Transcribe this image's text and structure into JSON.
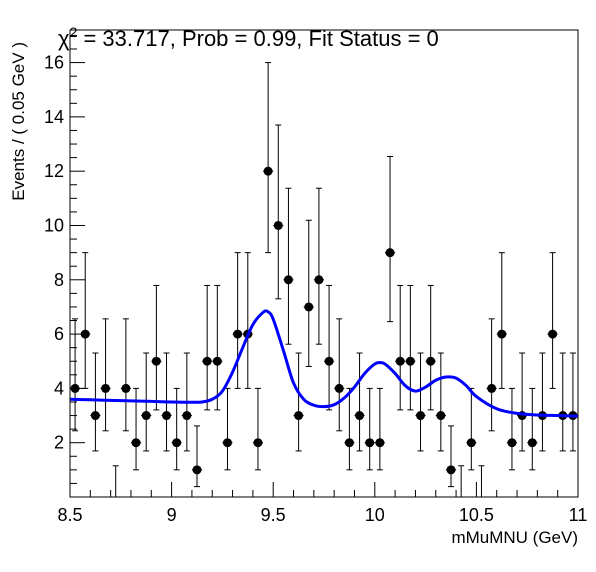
{
  "chart_data": {
    "type": "scatter",
    "title": "χ² = 33.717, Prob = 0.99, Fit Status = 0",
    "title_parts": {
      "chi": "χ",
      "sup": "2",
      "rest": " = 33.717, Prob = 0.99, Fit Status = 0"
    },
    "xlabel": "mMuMNU (GeV)",
    "ylabel": "Events / ( 0.05 GeV )",
    "xlim": [
      8.5,
      11.0
    ],
    "ylim": [
      0,
      17.2
    ],
    "x_ticks": [
      8.5,
      9,
      9.5,
      10,
      10.5,
      11
    ],
    "x_tick_labels": [
      "8.5",
      "9",
      "9.5",
      "10",
      "10.5",
      "11"
    ],
    "y_ticks": [
      2,
      4,
      6,
      8,
      10,
      12,
      14,
      16
    ],
    "y_tick_labels": [
      "2",
      "4",
      "6",
      "8",
      "10",
      "12",
      "14",
      "16"
    ],
    "grid": false,
    "colors": {
      "points": "#000000",
      "fit": "#0000ff",
      "frame": "#000000"
    },
    "series": [
      {
        "type": "points_with_errors",
        "x": [
          8.525,
          8.575,
          8.625,
          8.675,
          8.725,
          8.775,
          8.825,
          8.875,
          8.925,
          8.975,
          9.025,
          9.075,
          9.125,
          9.175,
          9.225,
          9.275,
          9.325,
          9.375,
          9.425,
          9.475,
          9.525,
          9.575,
          9.625,
          9.675,
          9.725,
          9.775,
          9.825,
          9.875,
          9.925,
          9.975,
          10.025,
          10.075,
          10.125,
          10.175,
          10.225,
          10.275,
          10.325,
          10.375,
          10.425,
          10.475,
          10.525,
          10.575,
          10.625,
          10.675,
          10.725,
          10.775,
          10.825,
          10.875,
          10.925,
          10.975
        ],
        "y": [
          4,
          6,
          3,
          4,
          0,
          4,
          2,
          3,
          5,
          3,
          2,
          3,
          1,
          5,
          5,
          2,
          6,
          6,
          2,
          12,
          10,
          8,
          3,
          7,
          8,
          5,
          4,
          2,
          3,
          2,
          2,
          9,
          5,
          5,
          3,
          5,
          3,
          1,
          0,
          2,
          0,
          4,
          6,
          2,
          3,
          2,
          3,
          6,
          3,
          3
        ]
      },
      {
        "type": "fit_curve",
        "x": [
          8.5,
          8.6,
          8.7,
          8.8,
          8.9,
          9.0,
          9.1,
          9.15,
          9.2,
          9.25,
          9.3,
          9.35,
          9.4,
          9.45,
          9.475,
          9.5,
          9.55,
          9.6,
          9.65,
          9.7,
          9.75,
          9.8,
          9.85,
          9.9,
          9.95,
          10.0,
          10.025,
          10.05,
          10.1,
          10.15,
          10.2,
          10.25,
          10.3,
          10.35,
          10.4,
          10.45,
          10.5,
          10.6,
          10.7,
          10.8,
          10.9,
          11.0
        ],
        "y": [
          3.6,
          3.58,
          3.56,
          3.54,
          3.52,
          3.5,
          3.49,
          3.5,
          3.6,
          3.9,
          4.6,
          5.5,
          6.35,
          6.8,
          6.82,
          6.55,
          5.4,
          4.2,
          3.6,
          3.38,
          3.33,
          3.4,
          3.65,
          4.05,
          4.55,
          4.9,
          4.95,
          4.9,
          4.55,
          4.1,
          3.9,
          4.05,
          4.3,
          4.42,
          4.38,
          4.1,
          3.7,
          3.25,
          3.08,
          3.02,
          3.0,
          2.98
        ]
      }
    ]
  }
}
